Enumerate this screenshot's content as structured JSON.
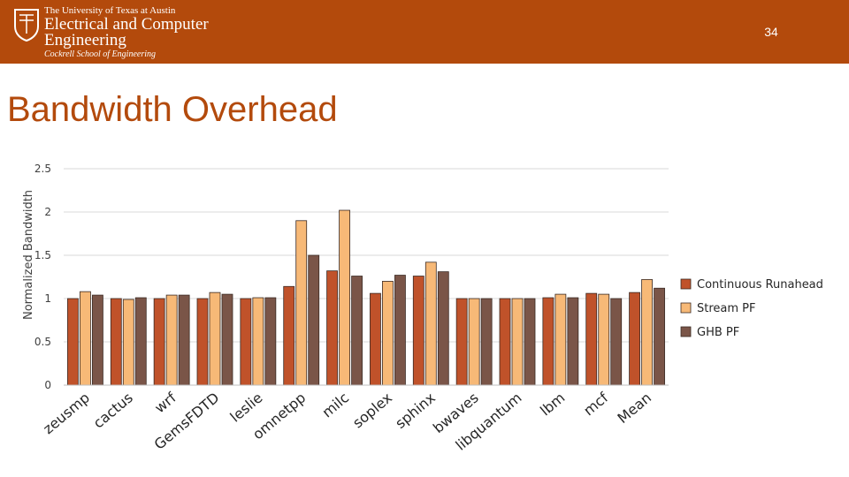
{
  "header": {
    "logo_line1": "The University of Texas at Austin",
    "logo_line2": "Electrical and Computer",
    "logo_line3": "Engineering",
    "logo_line4": "Cockrell School of Engineering",
    "slide_number": "34"
  },
  "title": "Bandwidth Overhead",
  "colors": {
    "header": "#b34a0c",
    "title": "#b34a0c",
    "series": [
      "#c0522a",
      "#f7b977",
      "#7a5548"
    ]
  },
  "chart_data": {
    "type": "bar",
    "title": "",
    "xlabel": "",
    "ylabel": "Normalized Bandwidth",
    "ylim": [
      0,
      2.5
    ],
    "yticks": [
      "0",
      "0.5",
      "1",
      "1.5",
      "2",
      "2.5"
    ],
    "grid": true,
    "legend_position": "right",
    "categories": [
      "zeusmp",
      "cactus",
      "wrf",
      "GemsFDTD",
      "leslie",
      "omnetpp",
      "milc",
      "soplex",
      "sphinx",
      "bwaves",
      "libquantum",
      "lbm",
      "mcf",
      "Mean"
    ],
    "series": [
      {
        "name": "Continuous Runahead",
        "values": [
          1.0,
          1.0,
          1.0,
          1.0,
          1.0,
          1.14,
          1.32,
          1.06,
          1.26,
          1.0,
          1.0,
          1.01,
          1.06,
          1.07
        ]
      },
      {
        "name": "Stream PF",
        "values": [
          1.08,
          0.99,
          1.04,
          1.07,
          1.01,
          1.9,
          2.02,
          1.2,
          1.42,
          1.0,
          1.0,
          1.05,
          1.05,
          1.22
        ]
      },
      {
        "name": "GHB PF",
        "values": [
          1.04,
          1.01,
          1.04,
          1.05,
          1.01,
          1.5,
          1.26,
          1.27,
          1.31,
          1.0,
          1.0,
          1.01,
          1.0,
          1.12
        ]
      }
    ]
  }
}
